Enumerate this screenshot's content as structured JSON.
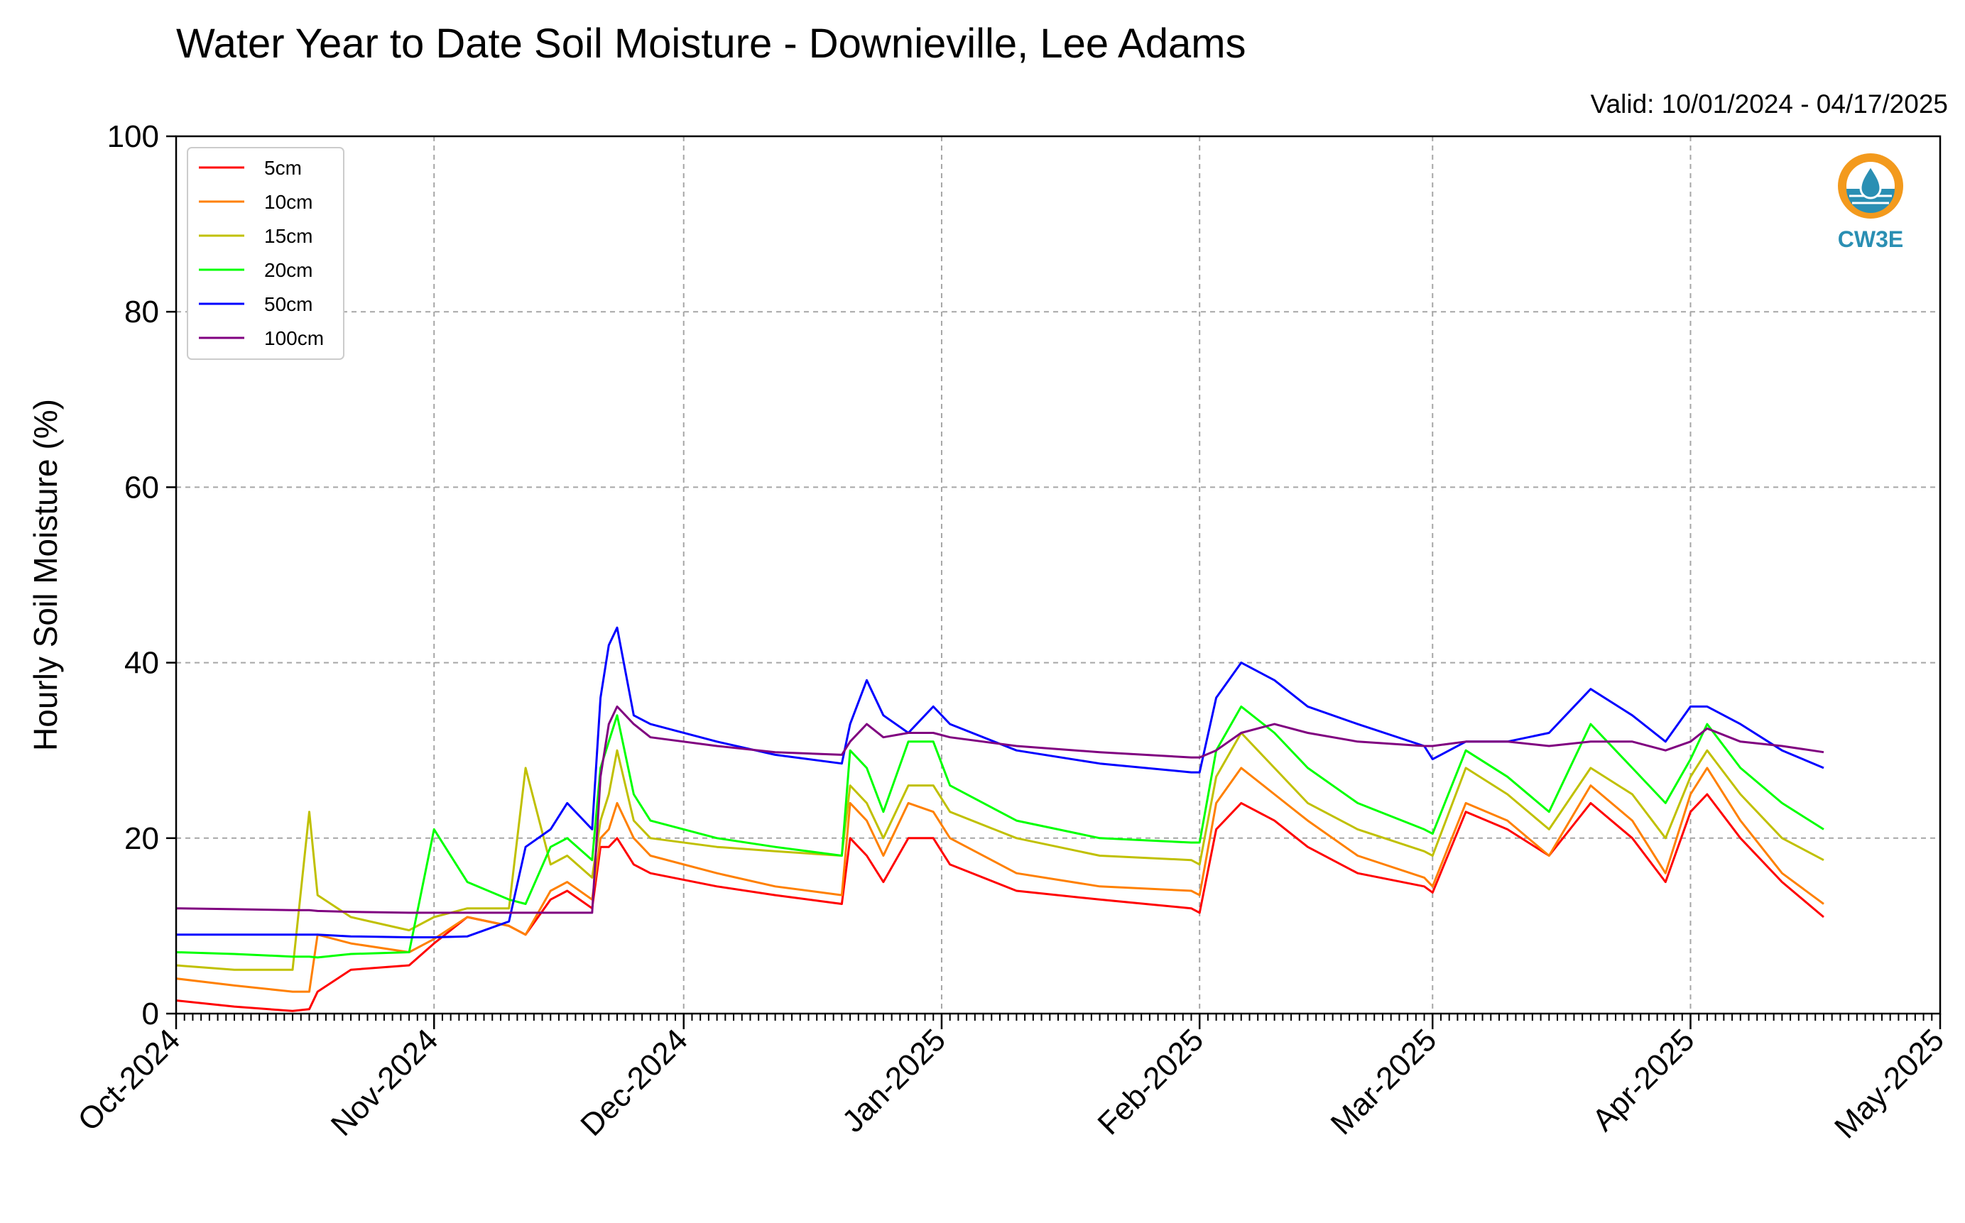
{
  "chart_data": {
    "type": "line",
    "title": "Water Year to Date Soil Moisture - Downieville, Lee Adams",
    "subtitle": "Valid: 10/01/2024 - 04/17/2025",
    "xlabel": "",
    "ylabel": "Hourly Soil Moisture (%)",
    "ylim": [
      0,
      100
    ],
    "yticks": [
      "0",
      "20",
      "40",
      "60",
      "80",
      "100"
    ],
    "xlim": [
      "2024-10-01",
      "2025-05-01"
    ],
    "xticks": [
      "Oct-2024",
      "Nov-2024",
      "Dec-2024",
      "Jan-2025",
      "Feb-2025",
      "Mar-2025",
      "Apr-2025",
      "May-2025"
    ],
    "grid": true,
    "legend_position": "upper-left",
    "logo_text": "CW3E",
    "x": [
      "2024-10-01",
      "2024-10-08",
      "2024-10-15",
      "2024-10-17",
      "2024-10-18",
      "2024-10-22",
      "2024-10-29",
      "2024-11-01",
      "2024-11-05",
      "2024-11-10",
      "2024-11-12",
      "2024-11-15",
      "2024-11-17",
      "2024-11-20",
      "2024-11-21",
      "2024-11-22",
      "2024-11-23",
      "2024-11-25",
      "2024-11-27",
      "2024-12-05",
      "2024-12-12",
      "2024-12-20",
      "2024-12-21",
      "2024-12-23",
      "2024-12-25",
      "2024-12-28",
      "2024-12-31",
      "2025-01-02",
      "2025-01-10",
      "2025-01-20",
      "2025-01-31",
      "2025-02-01",
      "2025-02-03",
      "2025-02-06",
      "2025-02-10",
      "2025-02-14",
      "2025-02-20",
      "2025-02-28",
      "2025-03-01",
      "2025-03-05",
      "2025-03-10",
      "2025-03-15",
      "2025-03-20",
      "2025-03-25",
      "2025-03-29",
      "2025-04-01",
      "2025-04-03",
      "2025-04-07",
      "2025-04-12",
      "2025-04-17"
    ],
    "series": [
      {
        "name": "5cm",
        "color": "#ff0000",
        "values": [
          1.5,
          0.8,
          0.3,
          0.5,
          2.5,
          5,
          5.5,
          8,
          11,
          10,
          9,
          13,
          14,
          12,
          19,
          19,
          20,
          17,
          16,
          14.5,
          13.5,
          12.5,
          20,
          18,
          15,
          20,
          20,
          17,
          14,
          13,
          12,
          11.5,
          21,
          24,
          22,
          19,
          16,
          14.5,
          13.8,
          23,
          21,
          18,
          24,
          20,
          15,
          23,
          25,
          20,
          15,
          11
        ]
      },
      {
        "name": "10cm",
        "color": "#ff8000",
        "values": [
          4,
          3.2,
          2.5,
          2.5,
          9,
          8,
          7,
          8.5,
          11,
          10,
          9,
          14,
          15,
          13,
          20,
          21,
          24,
          20,
          18,
          16,
          14.5,
          13.5,
          24,
          22,
          18,
          24,
          23,
          20,
          16,
          14.5,
          14,
          13.5,
          24,
          28,
          25,
          22,
          18,
          15.5,
          14.5,
          24,
          22,
          18,
          26,
          22,
          16,
          25,
          28,
          22,
          16,
          12.5
        ]
      },
      {
        "name": "15cm",
        "color": "#c0c000",
        "values": [
          5.5,
          5,
          5,
          23,
          13.5,
          11,
          9.5,
          11,
          12,
          12,
          28,
          17,
          18,
          15.5,
          22,
          25,
          30,
          22,
          20,
          19,
          18.5,
          18,
          26,
          24,
          20,
          26,
          26,
          23,
          20,
          18,
          17.5,
          17,
          27,
          32,
          28,
          24,
          21,
          18.5,
          18,
          28,
          25,
          21,
          28,
          25,
          20,
          27,
          30,
          25,
          20,
          17.5
        ]
      },
      {
        "name": "20cm",
        "color": "#00ff00",
        "values": [
          7,
          6.8,
          6.5,
          6.5,
          6.4,
          6.8,
          7,
          21,
          15,
          13,
          12.5,
          19,
          20,
          17.5,
          28,
          31,
          34,
          25,
          22,
          20,
          19,
          18,
          30,
          28,
          23,
          31,
          31,
          26,
          22,
          20,
          19.5,
          19.5,
          30,
          35,
          32,
          28,
          24,
          21,
          20.5,
          30,
          27,
          23,
          33,
          28,
          24,
          29,
          33,
          28,
          24,
          21
        ]
      },
      {
        "name": "50cm",
        "color": "#0000ff",
        "values": [
          9,
          9,
          9,
          9,
          9,
          8.8,
          8.7,
          8.7,
          8.8,
          10.5,
          19,
          21,
          24,
          21,
          36,
          42,
          44,
          34,
          33,
          31,
          29.5,
          28.5,
          33,
          38,
          34,
          32,
          35,
          33,
          30,
          28.5,
          27.5,
          27.5,
          36,
          40,
          38,
          35,
          33,
          30.5,
          29,
          31,
          31,
          32,
          37,
          34,
          31,
          35,
          35,
          33,
          30,
          28
        ]
      },
      {
        "name": "100cm",
        "color": "#800080",
        "values": [
          12,
          11.9,
          11.8,
          11.8,
          11.7,
          11.6,
          11.5,
          11.5,
          11.5,
          11.5,
          11.5,
          11.5,
          11.5,
          11.5,
          27,
          33,
          35,
          33,
          31.5,
          30.5,
          29.8,
          29.5,
          31,
          33,
          31.5,
          32,
          32,
          31.5,
          30.5,
          29.8,
          29.2,
          29.2,
          30,
          32,
          33,
          32,
          31,
          30.5,
          30.5,
          31,
          31,
          30.5,
          31,
          31,
          30,
          31,
          32.5,
          31,
          30.5,
          29.8
        ]
      }
    ]
  }
}
